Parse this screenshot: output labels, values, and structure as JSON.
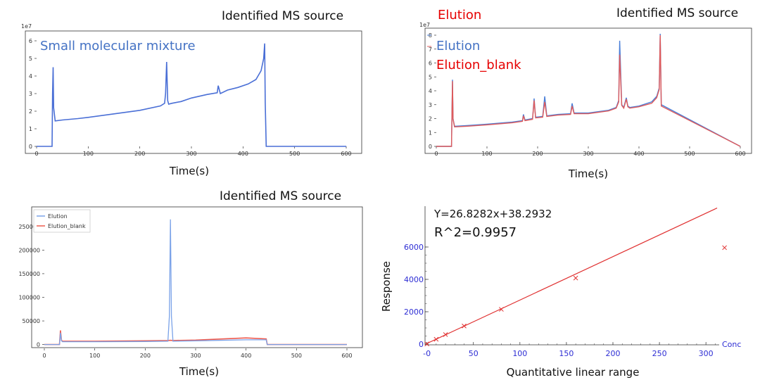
{
  "chart_data": [
    {
      "type": "line",
      "title": "Identified MS source",
      "annotation": "Small molecular mixture",
      "xlabel": "Time(s)",
      "ylabel": "",
      "y_exponent_label": "1e7",
      "xlim": [
        0,
        600
      ],
      "ylim": [
        0,
        6
      ],
      "x_ticks": [
        "0",
        "100",
        "200",
        "300",
        "400",
        "500",
        "600"
      ],
      "y_ticks": [
        "0",
        "1",
        "2",
        "3",
        "4",
        "5",
        "6"
      ],
      "series_color": "#4a6fd6",
      "series": [
        {
          "name": "",
          "x": [
            0,
            30,
            31,
            32,
            33,
            36,
            50,
            80,
            100,
            150,
            200,
            240,
            248,
            250,
            252,
            254,
            256,
            262,
            280,
            300,
            330,
            350,
            352,
            356,
            370,
            390,
            410,
            425,
            435,
            440,
            442,
            443,
            445,
            600
          ],
          "y": [
            0,
            0,
            3.0,
            4.5,
            2.2,
            1.45,
            1.5,
            1.58,
            1.65,
            1.85,
            2.05,
            2.3,
            2.45,
            3.0,
            4.8,
            2.6,
            2.4,
            2.45,
            2.55,
            2.75,
            2.95,
            3.05,
            3.45,
            3.0,
            3.2,
            3.35,
            3.55,
            3.8,
            4.3,
            5.0,
            5.85,
            2.5,
            0,
            0
          ]
        }
      ]
    },
    {
      "type": "line",
      "title": "Identified MS source",
      "heading": "Elution",
      "xlabel": "Time(s)",
      "ylabel": "",
      "y_exponent_label": "1e7",
      "xlim": [
        0,
        600
      ],
      "ylim": [
        0,
        8
      ],
      "x_ticks": [
        "0",
        "100",
        "200",
        "300",
        "400",
        "500",
        "600"
      ],
      "y_ticks": [
        "0",
        "1",
        "2",
        "3",
        "4",
        "5",
        "6",
        "7",
        "8"
      ],
      "legend": [
        "Elution",
        "Elution_blank"
      ],
      "series_colors": [
        "#4a7fd8",
        "#e05a5a"
      ],
      "series": [
        {
          "name": "Elution",
          "x": [
            0,
            30,
            31,
            32,
            33,
            36,
            60,
            100,
            150,
            170,
            172,
            175,
            190,
            193,
            196,
            210,
            214,
            218,
            240,
            265,
            268,
            272,
            300,
            340,
            355,
            360,
            362,
            366,
            370,
            375,
            378,
            382,
            400,
            425,
            435,
            440,
            442,
            444,
            600
          ],
          "y": [
            0,
            0,
            2.5,
            4.8,
            2.0,
            1.45,
            1.5,
            1.6,
            1.75,
            1.85,
            2.3,
            1.9,
            2.0,
            3.45,
            2.1,
            2.15,
            3.6,
            2.2,
            2.3,
            2.35,
            3.1,
            2.4,
            2.4,
            2.6,
            2.8,
            3.3,
            7.6,
            3.0,
            2.8,
            3.5,
            2.9,
            2.8,
            2.9,
            3.2,
            3.6,
            4.2,
            8.1,
            3.0,
            0
          ]
        },
        {
          "name": "Elution_blank",
          "x": [
            0,
            30,
            31,
            32,
            33,
            36,
            60,
            100,
            150,
            170,
            172,
            175,
            190,
            193,
            196,
            210,
            214,
            218,
            240,
            265,
            268,
            272,
            300,
            340,
            355,
            360,
            362,
            366,
            370,
            375,
            378,
            382,
            400,
            425,
            435,
            440,
            442,
            444,
            600
          ],
          "y": [
            0,
            0,
            2.4,
            4.7,
            1.95,
            1.4,
            1.45,
            1.55,
            1.7,
            1.8,
            2.2,
            1.85,
            1.95,
            3.3,
            2.05,
            2.1,
            3.2,
            2.15,
            2.25,
            2.3,
            2.9,
            2.35,
            2.35,
            2.55,
            2.75,
            3.2,
            6.6,
            2.95,
            2.75,
            3.4,
            2.85,
            2.75,
            2.85,
            3.1,
            3.5,
            4.1,
            8.0,
            2.9,
            0
          ]
        }
      ]
    },
    {
      "type": "line",
      "title": "Identified MS source",
      "xlabel": "Time(s)",
      "ylabel": "",
      "xlim": [
        0,
        600
      ],
      "ylim": [
        -8000,
        275000
      ],
      "x_ticks": [
        "0",
        "100",
        "200",
        "300",
        "400",
        "500",
        "600"
      ],
      "y_ticks": [
        "0",
        "50000",
        "100000",
        "150000",
        "200000",
        "250000"
      ],
      "legend": [
        "Elution",
        "Elution_blank"
      ],
      "series_colors": [
        "#7aa2e8",
        "#ee5a4e"
      ],
      "series": [
        {
          "name": "Elution",
          "x": [
            0,
            30,
            32,
            34,
            36,
            100,
            200,
            245,
            248,
            250,
            252,
            255,
            300,
            400,
            440,
            442,
            600
          ],
          "y": [
            0,
            0,
            25000,
            8000,
            6000,
            6000,
            6500,
            7000,
            60000,
            265000,
            60000,
            7000,
            8000,
            10000,
            10000,
            0,
            0
          ]
        },
        {
          "name": "Elution_blank",
          "x": [
            0,
            30,
            32,
            34,
            36,
            100,
            200,
            245,
            250,
            255,
            300,
            400,
            440,
            442,
            600
          ],
          "y": [
            0,
            0,
            30000,
            9000,
            7000,
            7000,
            8000,
            8500,
            9000,
            8500,
            9500,
            14000,
            12000,
            0,
            0
          ]
        }
      ]
    },
    {
      "type": "scatter",
      "title": "",
      "subtitle": "Quantitative linear range",
      "xlabel": "Conc",
      "ylabel": "Response",
      "xlim": [
        -2,
        315
      ],
      "ylim": [
        -50,
        6250
      ],
      "x_ticks": [
        "-0",
        "50",
        "100",
        "150",
        "200",
        "250",
        "300"
      ],
      "y_ticks": [
        "0",
        "2000",
        "4000",
        "6000"
      ],
      "equation": "Y=26.8282x+38.2932",
      "r_squared": "R^2=0.9957",
      "fit": {
        "slope": 26.8282,
        "intercept": 38.2932
      },
      "series_color": "#e03030",
      "points": {
        "x": [
          0,
          10,
          20,
          40,
          80,
          160,
          320
        ],
        "y": [
          10,
          300,
          590,
          1120,
          2150,
          4080,
          5960
        ]
      }
    }
  ]
}
